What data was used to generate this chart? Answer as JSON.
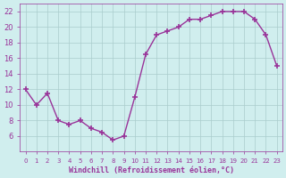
{
  "x": [
    0,
    1,
    2,
    3,
    4,
    5,
    6,
    7,
    8,
    9,
    10,
    11,
    12,
    13,
    14,
    15,
    16,
    17,
    18,
    19,
    20,
    21,
    22,
    23
  ],
  "y": [
    12,
    10,
    11.5,
    8,
    7.5,
    8,
    7,
    6.5,
    5.5,
    6,
    11,
    16.5,
    19,
    19.5,
    20,
    21,
    21,
    21.5,
    22,
    22,
    22,
    21,
    19,
    15
  ],
  "line_color": "#993399",
  "marker": "+",
  "marker_size": 5,
  "background_color": "#d0eeee",
  "grid_color": "#aacccc",
  "xlabel": "Windchill (Refroidissement éolien,°C)",
  "xlabel_color": "#993399",
  "tick_color": "#993399",
  "ylim": [
    4,
    23
  ],
  "xlim": [
    -0.5,
    23.5
  ],
  "yticks": [
    6,
    8,
    10,
    12,
    14,
    16,
    18,
    20,
    22
  ],
  "xticks": [
    0,
    1,
    2,
    3,
    4,
    5,
    6,
    7,
    8,
    9,
    10,
    11,
    12,
    13,
    14,
    15,
    16,
    17,
    18,
    19,
    20,
    21,
    22,
    23
  ]
}
